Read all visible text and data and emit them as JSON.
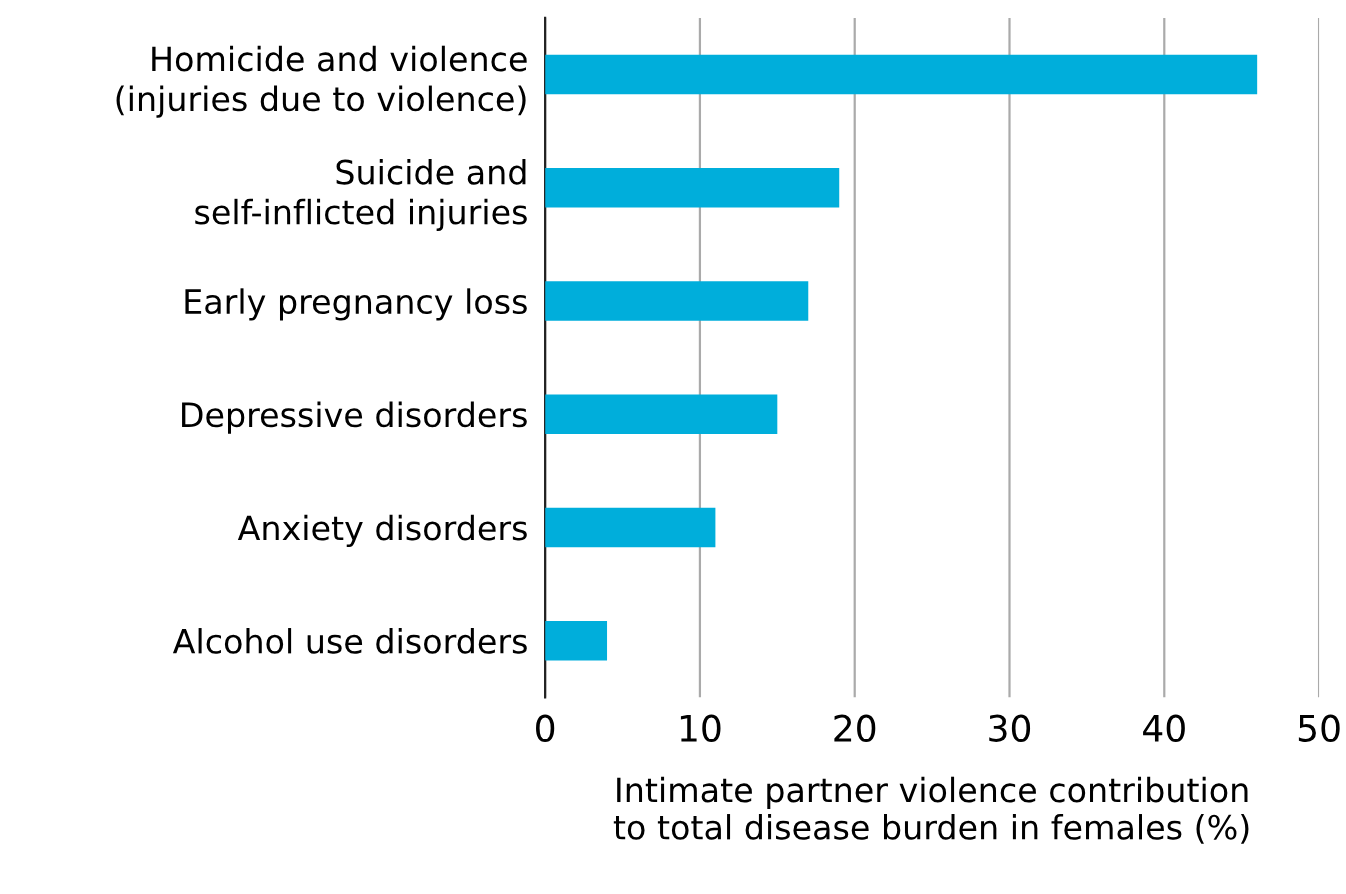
{
  "chart_data": {
    "type": "bar",
    "orientation": "horizontal",
    "categories": [
      "Homicide and violence\n(injuries due to violence)",
      "Suicide and\nself-inflicted injuries",
      "Early pregnancy loss",
      "Depressive disorders",
      "Anxiety disorders",
      "Alcohol use disorders"
    ],
    "values": [
      46,
      19,
      17,
      15,
      11,
      4
    ],
    "color": "#00aedb",
    "xlim": [
      0,
      50
    ],
    "xticks": [
      0,
      10,
      20,
      30,
      40,
      50
    ],
    "xlabel": "Intimate partner violence contribution\nto total disease burden in females (%)",
    "grid": "x"
  }
}
